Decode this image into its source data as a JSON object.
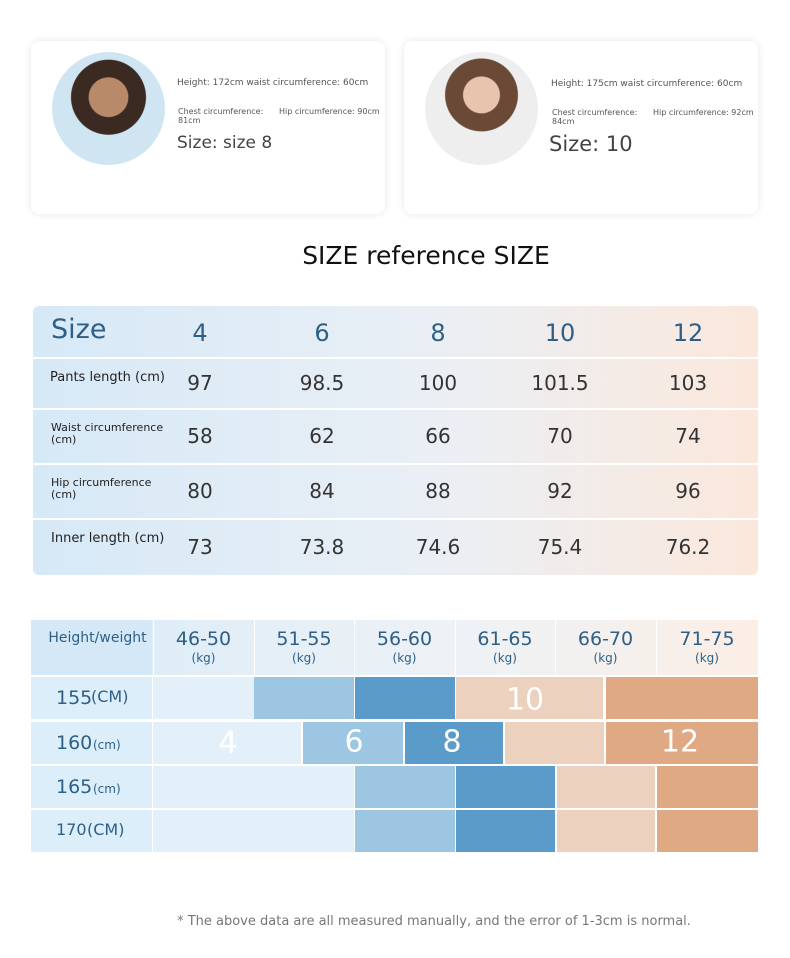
{
  "models": [
    {
      "measure": "Height: 172cm waist circumference: 60cm",
      "chest": "Chest circumference: 81cm",
      "hip": "Hip circumference: 90cm",
      "size": "Size: size 8"
    },
    {
      "measure": "Height: 175cm waist circumference: 60cm",
      "chest": "Chest circumference: 84cm",
      "hip": "Hip circumference: 92cm",
      "size": "Size: 10"
    }
  ],
  "title": "SIZE reference SIZE",
  "size_table": {
    "header": [
      "Size",
      4,
      6,
      8,
      10,
      12
    ],
    "rows": [
      [
        "Pants length (cm)",
        97,
        98.5,
        100,
        101.5,
        103
      ],
      [
        "Waist circumference (cm)",
        58,
        62,
        66,
        70,
        74
      ],
      [
        "Hip circumference (cm)",
        80,
        84,
        88,
        92,
        96
      ],
      [
        "Inner length (cm)",
        73,
        73.8,
        74.6,
        75.4,
        76.2
      ]
    ]
  },
  "height_table": {
    "corner": "Height/weight",
    "columns": [
      {
        "range": "46-50",
        "unit": "(kg)"
      },
      {
        "range": "51-55",
        "unit": "(kg)"
      },
      {
        "range": "56-60",
        "unit": "(kg)"
      },
      {
        "range": "61-65",
        "unit": "(kg)"
      },
      {
        "range": "66-70",
        "unit": "(kg)"
      },
      {
        "range": "71-75",
        "unit": "(kg)"
      }
    ],
    "rows": [
      {
        "height": "155",
        "unit": "(CM)"
      },
      {
        "height": "160",
        "unit": "(cm)"
      },
      {
        "height": "165",
        "unit": "(cm)"
      },
      {
        "height": "170",
        "unit": "(CM)"
      }
    ],
    "size_labels": [
      10,
      4,
      6,
      8,
      12
    ]
  },
  "footnote": "* The above data are all measured manually, and the error of 1-3cm is normal."
}
